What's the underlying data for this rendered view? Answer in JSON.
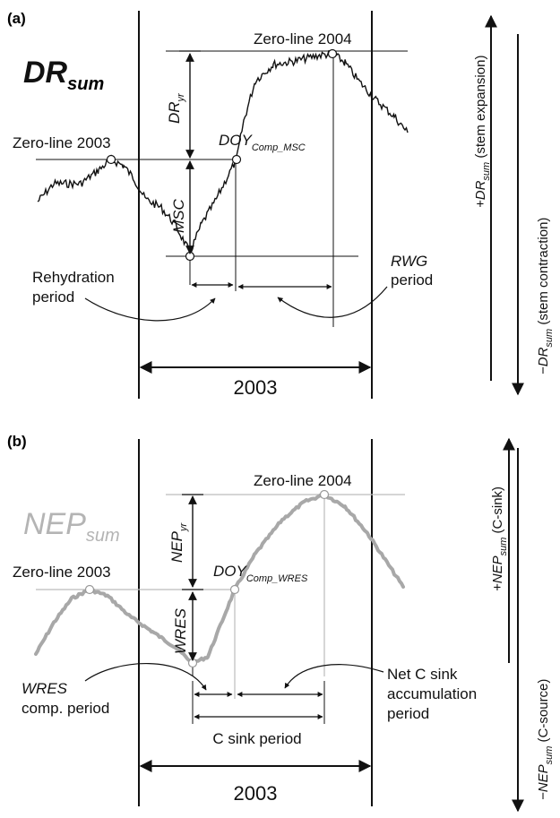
{
  "panel_a": {
    "label": "(a)",
    "title": "DR",
    "title_sub": "sum",
    "zero_2003": "Zero-line 2003",
    "zero_2004": "Zero-line 2004",
    "dr_yr": "DR",
    "dr_yr_sub": "yr",
    "doy": "DOY",
    "doy_sub": "Comp_MSC",
    "msc": "MSC",
    "rehydration": [
      "Rehydration",
      "period"
    ],
    "rwg": [
      "RWG",
      "period"
    ],
    "year": "2003",
    "axis_plus": "+DR",
    "axis_plus_sub": "sum",
    "axis_plus_desc": " (stem expansion)",
    "axis_minus": "−DR",
    "axis_minus_sub": "sum",
    "axis_minus_desc": " (stem contraction)"
  },
  "panel_b": {
    "label": "(b)",
    "title": "NEP",
    "title_sub": "sum",
    "zero_2003": "Zero-line 2003",
    "zero_2004": "Zero-line 2004",
    "nep_yr": "NEP",
    "nep_yr_sub": "yr",
    "doy": "DOY",
    "doy_sub": "Comp_WRES",
    "wres": "WRES",
    "wres_comp": [
      "WRES",
      "comp. period"
    ],
    "net_sink": [
      "Net C sink",
      "accumulation",
      "period"
    ],
    "c_sink_period": "C sink period",
    "year": "2003",
    "axis_plus": "+NEP",
    "axis_plus_sub": "sum",
    "axis_plus_desc": " (C-sink)",
    "axis_minus": "−NEP",
    "axis_minus_sub": "sum",
    "axis_minus_desc": " (C-source)"
  },
  "colors": {
    "ink": "#111111",
    "nep_curve": "#a8a8a8",
    "guide_line": "#bcbcbc"
  }
}
